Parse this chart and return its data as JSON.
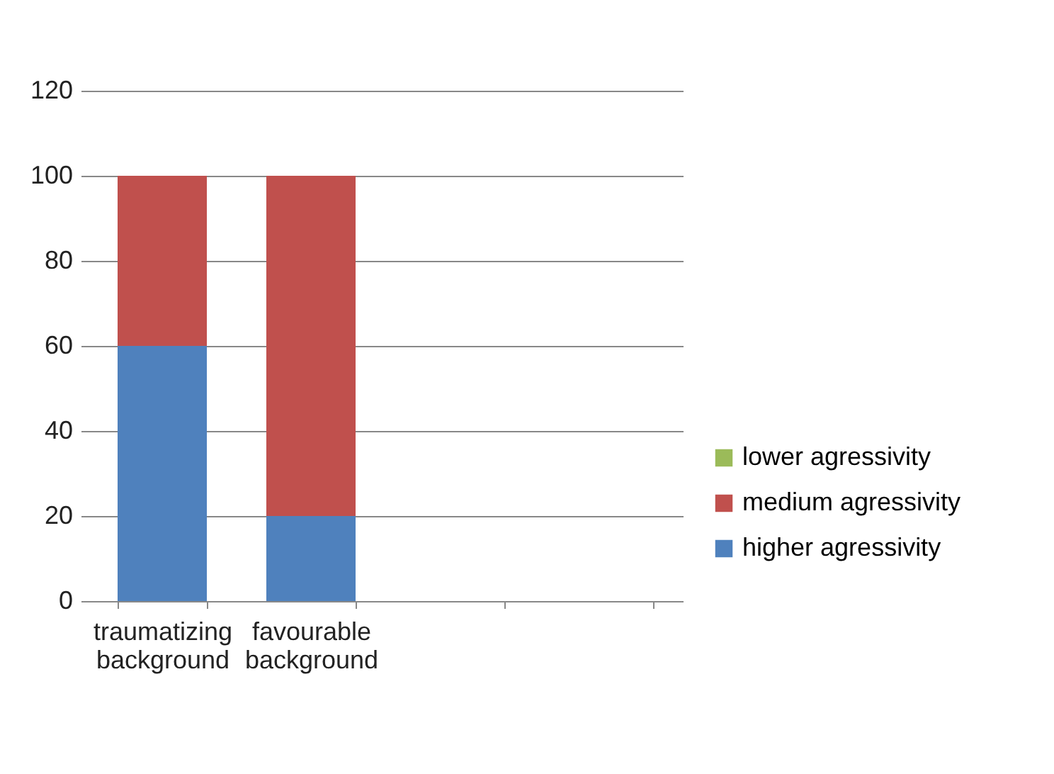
{
  "chart_data": {
    "type": "bar",
    "stacked": true,
    "categories": [
      "traumatizing background",
      "favourable background",
      null,
      null
    ],
    "series": [
      {
        "name": "higher agressivity",
        "color": "#4f81bd",
        "values": [
          60,
          20,
          null,
          null
        ]
      },
      {
        "name": "medium agressivity",
        "color": "#c0504d",
        "values": [
          40,
          80,
          null,
          null
        ]
      },
      {
        "name": "lower agressivity",
        "color": "#9bbb59",
        "values": [
          0,
          0,
          null,
          null
        ]
      }
    ],
    "ylim": [
      0,
      120
    ],
    "yticks": [
      0,
      20,
      40,
      60,
      80,
      100,
      120
    ],
    "grid": "y",
    "legend": "bottom right"
  }
}
